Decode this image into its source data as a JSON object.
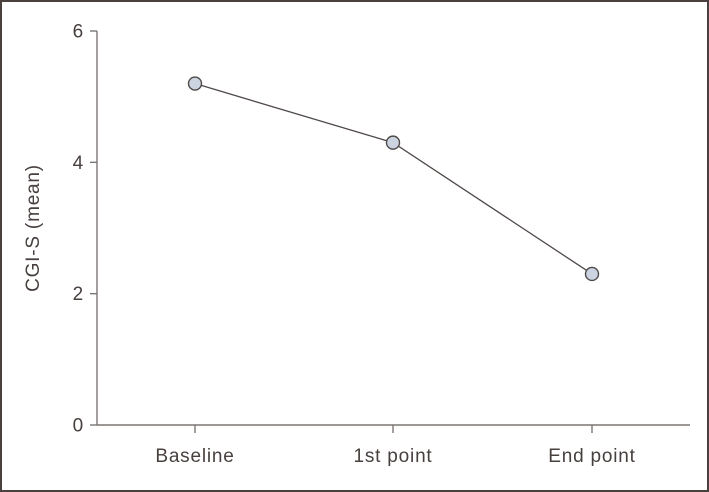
{
  "figure": {
    "background": "#ffffff",
    "border_color": "#4a413e"
  },
  "chart_data": {
    "type": "line",
    "categories": [
      "Baseline",
      "1st point",
      "End point"
    ],
    "series": [
      {
        "name": "CGI-S (mean)",
        "values": [
          5.2,
          4.3,
          2.3
        ]
      }
    ],
    "title": "",
    "xlabel": "",
    "ylabel": "CGI-S (mean)",
    "ylim": [
      0,
      6
    ],
    "yticks": [
      0,
      2,
      4,
      6
    ],
    "grid": false,
    "legend": "none",
    "marker": "circle",
    "colors": {
      "line": "#4f4a48",
      "marker_fill": "#ccd4e1",
      "marker_stroke": "#4f4a48",
      "axis": "#7b7674",
      "text": "#47403e"
    }
  }
}
